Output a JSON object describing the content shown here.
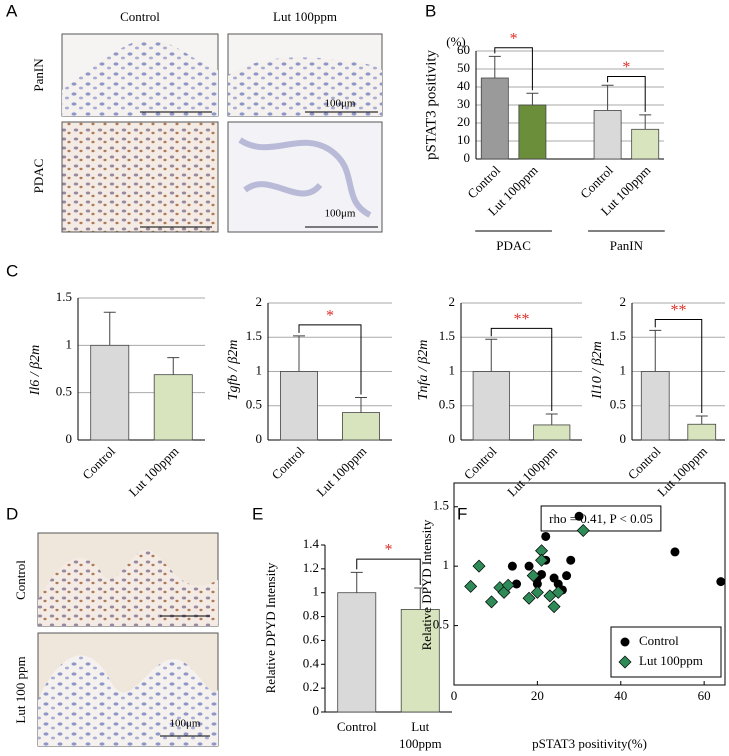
{
  "panel_labels": [
    "A",
    "B",
    "C",
    "D",
    "E",
    "F"
  ],
  "figure_a": {
    "columns": [
      "Control",
      "Lut 100ppm"
    ],
    "rows": [
      "PanIN",
      "PDAC"
    ],
    "scale_bar": "100μm"
  },
  "figure_d": {
    "rows": [
      "Control",
      "Lut 100 ppm"
    ],
    "scale_bar": "100μm"
  },
  "chart_data": [
    {
      "type": "bar",
      "ylabel": "pSTAT3 positivity",
      "y_unit": "(%)",
      "categories": [
        "Control",
        "Lut 100ppm",
        "Control",
        "Lut 100ppm"
      ],
      "groups": [
        "PDAC",
        "PanIN"
      ],
      "values": [
        45,
        30,
        27,
        16.5
      ],
      "errors": [
        12,
        6.5,
        14,
        8
      ],
      "colors": [
        "#9a9a9a",
        "#6b8e3a",
        "#d9d9d9",
        "#d7e4bd"
      ],
      "ylim": [
        0,
        60
      ],
      "yticks": [
        0,
        10,
        20,
        30,
        40,
        50,
        60
      ],
      "grid": true,
      "annotations": [
        "*",
        "*"
      ]
    },
    {
      "type": "bar",
      "ylabel": "Il6 / β2m",
      "categories": [
        "Control",
        "Lut 100ppm"
      ],
      "values": [
        1,
        0.69
      ],
      "errors": [
        0.35,
        0.18
      ],
      "colors": [
        "#d9d9d9",
        "#d7e4bd"
      ],
      "ylim": [
        0,
        1.5
      ],
      "yticks": [
        0,
        0.5,
        1,
        1.5
      ],
      "grid": true,
      "annotations": []
    },
    {
      "type": "bar",
      "ylabel": "Tgfb / β2m",
      "categories": [
        "Control",
        "Lut 100ppm"
      ],
      "values": [
        1,
        0.4
      ],
      "errors": [
        0.52,
        0.22
      ],
      "colors": [
        "#d9d9d9",
        "#d7e4bd"
      ],
      "ylim": [
        0,
        2
      ],
      "yticks": [
        0,
        0.5,
        1,
        1.5,
        2
      ],
      "grid": true,
      "annotations": [
        "*"
      ]
    },
    {
      "type": "bar",
      "ylabel": "Tnfa / β2m",
      "categories": [
        "Control",
        "Lut 100ppm"
      ],
      "values": [
        1,
        0.22
      ],
      "errors": [
        0.47,
        0.16
      ],
      "colors": [
        "#d9d9d9",
        "#d7e4bd"
      ],
      "ylim": [
        0,
        2
      ],
      "yticks": [
        0,
        0.5,
        1,
        1.5,
        2
      ],
      "grid": true,
      "annotations": [
        "**"
      ]
    },
    {
      "type": "bar",
      "ylabel": "Il10 / β2m",
      "categories": [
        "Control",
        "Lut 100ppm"
      ],
      "values": [
        1,
        0.23
      ],
      "errors": [
        0.6,
        0.12
      ],
      "colors": [
        "#d9d9d9",
        "#d7e4bd"
      ],
      "ylim": [
        0,
        2
      ],
      "yticks": [
        0,
        0.5,
        1,
        1.5,
        2
      ],
      "grid": true,
      "annotations": [
        "**"
      ]
    },
    {
      "type": "bar",
      "ylabel": "Relative DPYD  Intensity",
      "categories": [
        "Control",
        "Lut 100ppm"
      ],
      "values": [
        1,
        0.86
      ],
      "errors": [
        0.17,
        0.18
      ],
      "colors": [
        "#d9d9d9",
        "#d7e4bd"
      ],
      "ylim": [
        0,
        1.4
      ],
      "yticks": [
        0,
        0.2,
        0.4,
        0.6,
        0.8,
        1,
        1.2,
        1.4
      ],
      "grid": false,
      "annotations": [
        "*"
      ]
    },
    {
      "type": "scatter",
      "xlabel": "pSTAT3 positivity(%)",
      "ylabel": "Relative DPYD Intensity",
      "annotation": "rho = 0.41, P < 0.05",
      "legend": "bottom-right",
      "xlim": [
        0,
        65
      ],
      "xticks": [
        0,
        20,
        40,
        60
      ],
      "ylim": [
        0,
        1.7
      ],
      "yticks": [
        0.5,
        1,
        1.5
      ],
      "series": [
        {
          "name": "Control",
          "color": "#000000",
          "marker": "circle",
          "x": [
            14,
            15,
            18,
            20,
            20,
            21,
            22,
            22,
            23,
            24,
            25,
            26,
            27,
            28,
            30,
            53,
            64
          ],
          "values": [
            1.0,
            0.85,
            1.0,
            0.85,
            0.9,
            0.93,
            1.05,
            1.25,
            0.75,
            0.9,
            0.85,
            0.8,
            0.92,
            1.05,
            1.42,
            1.12,
            0.87
          ]
        },
        {
          "name": "Lut 100ppm",
          "color": "#2e8b57",
          "marker": "diamond",
          "x": [
            4,
            6,
            9,
            11,
            12,
            13,
            18,
            19,
            20,
            21,
            21,
            23,
            24,
            25,
            31
          ],
          "values": [
            0.83,
            1.0,
            0.7,
            0.82,
            0.78,
            0.84,
            0.73,
            0.92,
            0.78,
            1.13,
            1.05,
            0.75,
            0.66,
            0.78,
            1.3
          ]
        }
      ]
    }
  ]
}
